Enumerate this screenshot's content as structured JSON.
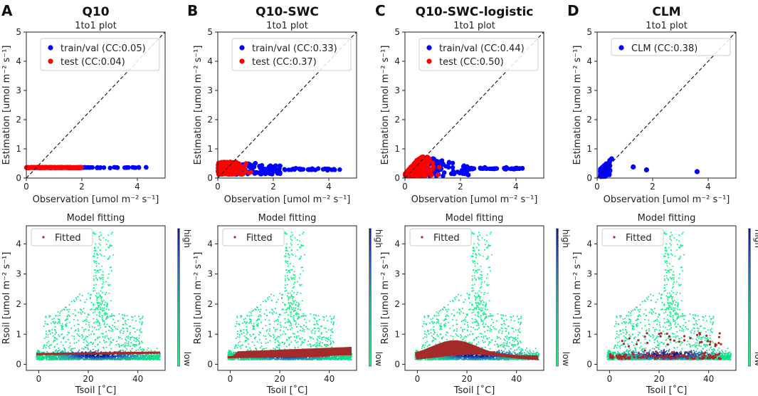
{
  "figure": {
    "panels": [
      {
        "letter": "A",
        "name": "Q10"
      },
      {
        "letter": "B",
        "name": "Q10-SWC"
      },
      {
        "letter": "C",
        "name": "Q10-SWC-logistic"
      },
      {
        "letter": "D",
        "name": "CLM"
      }
    ]
  },
  "colors": {
    "train": "#0000ff",
    "test": "#ff0000",
    "fitted": "#a52a2a",
    "density_low": "#00ff80",
    "density_high": "#0b1a8a"
  },
  "chart_data": [
    {
      "type": "scatter",
      "panel": "A",
      "title": "1to1 plot",
      "xlabel": "Observation [umol m⁻² s⁻¹]",
      "ylabel": "Estimation [umol m⁻² s⁻¹]",
      "xlim": [
        0,
        5
      ],
      "ylim": [
        0,
        5
      ],
      "xticks": [
        0,
        2,
        4
      ],
      "yticks": [
        0,
        1,
        2,
        3,
        4,
        5
      ],
      "reference_line": "1:1 dashed",
      "series": [
        {
          "name": "train/val (CC:0.05)",
          "color": "blue",
          "x_range": [
            0.0,
            4.4
          ],
          "y_range": [
            0.3,
            0.42
          ]
        },
        {
          "name": "test (CC:0.04)",
          "color": "red",
          "x_range": [
            0.0,
            2.0
          ],
          "y_range": [
            0.3,
            0.4
          ]
        }
      ]
    },
    {
      "type": "scatter",
      "panel": "B",
      "title": "1to1 plot",
      "xlabel": "Observation [umol m⁻² s⁻¹]",
      "ylabel": "Estimation [umol m⁻² s⁻¹]",
      "xlim": [
        0,
        5
      ],
      "ylim": [
        0,
        5
      ],
      "xticks": [
        0,
        2,
        4
      ],
      "yticks": [
        0,
        1,
        2,
        3,
        4,
        5
      ],
      "reference_line": "1:1 dashed",
      "series": [
        {
          "name": "train/val (CC:0.33)",
          "color": "blue",
          "x_range": [
            0.0,
            4.4
          ],
          "y_range": [
            0.1,
            0.6
          ]
        },
        {
          "name": "test (CC:0.37)",
          "color": "red",
          "x_range": [
            0.0,
            2.0
          ],
          "y_range": [
            0.1,
            0.55
          ]
        }
      ]
    },
    {
      "type": "scatter",
      "panel": "C",
      "title": "1to1 plot",
      "xlabel": "Observation [umol m⁻² s⁻¹]",
      "ylabel": "Estimation [umol m⁻² s⁻¹]",
      "xlim": [
        0,
        5
      ],
      "ylim": [
        0,
        5
      ],
      "xticks": [
        0,
        2,
        4
      ],
      "yticks": [
        0,
        1,
        2,
        3,
        4,
        5
      ],
      "reference_line": "1:1 dashed",
      "series": [
        {
          "name": "train/val (CC:0.44)",
          "color": "blue",
          "x_range": [
            0.0,
            4.4
          ],
          "y_range": [
            0.05,
            0.85
          ]
        },
        {
          "name": "test (CC:0.50)",
          "color": "red",
          "x_range": [
            0.0,
            2.0
          ],
          "y_range": [
            0.05,
            0.8
          ]
        }
      ]
    },
    {
      "type": "scatter",
      "panel": "D",
      "title": "1to1 plot",
      "xlabel": "Observation [umol m⁻² s⁻¹]",
      "ylabel": "Estimation [umol m⁻² s⁻¹]",
      "xlim": [
        0,
        5
      ],
      "ylim": [
        0,
        5
      ],
      "xticks": [
        0,
        2,
        4
      ],
      "yticks": [
        0,
        1,
        2,
        3,
        4,
        5
      ],
      "reference_line": "1:1 dashed",
      "series": [
        {
          "name": "CLM (CC:0.38)",
          "color": "blue",
          "x_range": [
            0.1,
            3.6
          ],
          "y_range": [
            0.05,
            1.05
          ]
        }
      ]
    },
    {
      "type": "scatter",
      "panel": "A",
      "title": "Model fitting",
      "xlabel": "Tsoil [˚C]",
      "ylabel": "Rsoil [umol m⁻² s⁻¹]",
      "xlim": [
        -5,
        51
      ],
      "ylim": [
        -0.2,
        4.6
      ],
      "xticks": [
        0,
        20,
        40
      ],
      "yticks": [
        0,
        1,
        2,
        3,
        4
      ],
      "colorbar": {
        "high_label": "high",
        "low_label": "low"
      },
      "series": [
        {
          "name": "Observations (density colored)",
          "x_range": [
            -1,
            49
          ],
          "y_range": [
            0.0,
            4.4
          ]
        },
        {
          "name": "Fitted",
          "color": "brown",
          "shape": "flat line",
          "x_range": [
            -1,
            49
          ],
          "y_range": [
            0.33,
            0.4
          ]
        }
      ]
    },
    {
      "type": "scatter",
      "panel": "B",
      "title": "Model fitting",
      "xlabel": "Tsoil [˚C]",
      "ylabel": "Rsoil [umol m⁻² s⁻¹]",
      "xlim": [
        -5,
        51
      ],
      "ylim": [
        -0.2,
        4.6
      ],
      "xticks": [
        0,
        20,
        40
      ],
      "yticks": [
        0,
        1,
        2,
        3,
        4
      ],
      "colorbar": {
        "high_label": "high",
        "low_label": "low"
      },
      "series": [
        {
          "name": "Observations (density colored)",
          "x_range": [
            -1,
            49
          ],
          "y_range": [
            0.0,
            4.4
          ]
        },
        {
          "name": "Fitted",
          "color": "brown",
          "shape": "band",
          "x_range": [
            -1,
            49
          ],
          "y_range": [
            0.15,
            0.6
          ]
        }
      ]
    },
    {
      "type": "scatter",
      "panel": "C",
      "title": "Model fitting",
      "xlabel": "Tsoil [˚C]",
      "ylabel": "Rsoil [umol m⁻² s⁻¹]",
      "xlim": [
        -5,
        51
      ],
      "ylim": [
        -0.2,
        4.6
      ],
      "xticks": [
        0,
        20,
        40
      ],
      "yticks": [
        0,
        1,
        2,
        3,
        4
      ],
      "colorbar": {
        "high_label": "high",
        "low_label": "low"
      },
      "series": [
        {
          "name": "Observations (density colored)",
          "x_range": [
            -1,
            49
          ],
          "y_range": [
            0.0,
            4.4
          ]
        },
        {
          "name": "Fitted",
          "color": "brown",
          "shape": "hump band",
          "x_range": [
            -1,
            49
          ],
          "y_range": [
            0.1,
            0.82
          ]
        }
      ]
    },
    {
      "type": "scatter",
      "panel": "D",
      "title": "Model fitting",
      "xlabel": "Tsoil [˚C]",
      "ylabel": "Rsoil [umol m⁻² s⁻¹]",
      "xlim": [
        -5,
        51
      ],
      "ylim": [
        -0.2,
        4.6
      ],
      "xticks": [
        0,
        20,
        40
      ],
      "yticks": [
        0,
        1,
        2,
        3,
        4
      ],
      "colorbar": {
        "high_label": "high",
        "low_label": "low"
      },
      "series": [
        {
          "name": "Observations (density colored)",
          "x_range": [
            -1,
            49
          ],
          "y_range": [
            0.0,
            4.4
          ]
        },
        {
          "name": "Fitted",
          "color": "brown",
          "shape": "scattered dots",
          "x_range": [
            0,
            45
          ],
          "y_range": [
            0.1,
            1.1
          ]
        }
      ]
    }
  ]
}
